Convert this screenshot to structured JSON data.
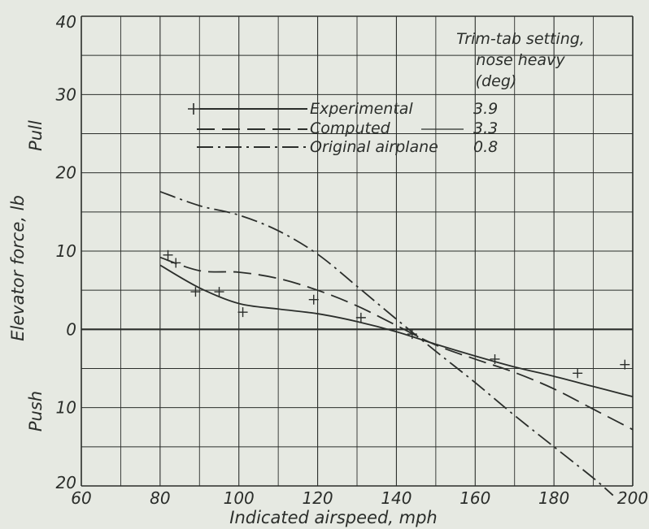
{
  "chart_data": {
    "type": "line",
    "xlabel": "Indicated airspeed, mph",
    "ylabel": "Elevator force, lb",
    "ylabel_pull": "Pull",
    "ylabel_push": "Push",
    "xlim": [
      60,
      200
    ],
    "ylim": [
      -20,
      40
    ],
    "x_ticks": [
      "60",
      "80",
      "100",
      "120",
      "140",
      "160",
      "180",
      "200"
    ],
    "y_ticks": [
      {
        "value": 40,
        "label": "40"
      },
      {
        "value": 30,
        "label": "30"
      },
      {
        "value": 20,
        "label": "20"
      },
      {
        "value": 10,
        "label": "10"
      },
      {
        "value": 0,
        "label": "0"
      },
      {
        "value": -10,
        "label": "10"
      },
      {
        "value": -20,
        "label": "20"
      }
    ],
    "grid": true,
    "legend_title": [
      "Trim-tab setting,",
      "nose heavy",
      "(deg)"
    ],
    "series": [
      {
        "name": "Experimental",
        "setting": "3.9",
        "style": "solid",
        "x": [
          80,
          90,
          100,
          110,
          120,
          130,
          140,
          150,
          160,
          170,
          180,
          190,
          200
        ],
        "y": [
          8.2,
          5.3,
          3.3,
          2.6,
          2.0,
          1.0,
          -0.3,
          -1.9,
          -3.4,
          -4.8,
          -6.0,
          -7.3,
          -8.6
        ]
      },
      {
        "name": "Computed",
        "setting": "3.3",
        "style": "dashed",
        "x": [
          80,
          90,
          100,
          110,
          120,
          130,
          140,
          150,
          160,
          170,
          180,
          190,
          200
        ],
        "y": [
          9.2,
          7.5,
          7.3,
          6.5,
          5.0,
          3.0,
          0.5,
          -2.0,
          -3.8,
          -5.5,
          -7.6,
          -10.2,
          -12.8
        ]
      },
      {
        "name": "Original airplane",
        "setting": "0.8",
        "style": "dash-dot",
        "x": [
          80,
          90,
          100,
          110,
          120,
          130,
          140,
          150,
          160,
          170,
          180,
          190,
          195
        ],
        "y": [
          17.6,
          15.8,
          14.6,
          12.6,
          9.6,
          5.5,
          1.3,
          -2.8,
          -6.8,
          -11.0,
          -15.0,
          -19.0,
          -21.2
        ]
      }
    ],
    "test_points": {
      "x": [
        82,
        84,
        89,
        95,
        101,
        119,
        131,
        144,
        165,
        186,
        198
      ],
      "y": [
        9.5,
        8.5,
        4.8,
        4.8,
        2.2,
        3.8,
        1.5,
        -0.6,
        -3.8,
        -5.6,
        -4.5
      ]
    }
  }
}
